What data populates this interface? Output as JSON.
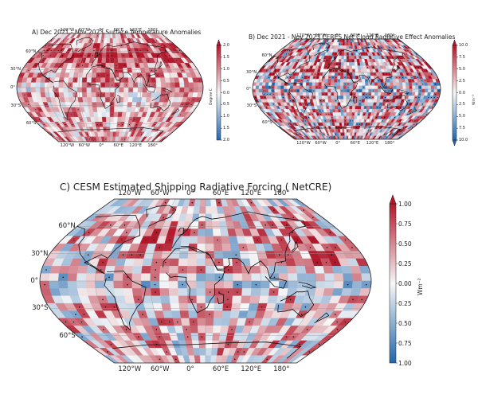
{
  "panels": [
    {
      "id": "a",
      "title": "A) Dec 2021 - Nov 2023 Surface Temperature Anomalies",
      "lon_top": [
        "60°W",
        "0°",
        "60°E",
        "120°E",
        "180°",
        "120°W"
      ],
      "lon_bottom": [
        "60°W",
        "0°",
        "60°E",
        "120°E",
        "180°",
        "120°W"
      ],
      "lat_left": [
        "60°N",
        "30°N",
        "0°",
        "30°S",
        "60°S"
      ],
      "colorbar": {
        "ticks": [
          "2.0",
          "1.5",
          "1.0",
          "0.5",
          "0.0",
          "0.5",
          "1.0",
          "1.5",
          "2.0"
        ],
        "unit": "Degree C",
        "vmin": -2.0,
        "vmax": 2.0
      }
    },
    {
      "id": "b",
      "title": "B) Dec 2021 - Nov 2023 CERES Net Cloud Radiative Effect Anomalies",
      "lon_top": [
        "60°W",
        "0°",
        "60°E",
        "120°E",
        "180°",
        "120°W"
      ],
      "lon_bottom": [
        "60°W",
        "0°",
        "60°E",
        "120°E",
        "180°",
        "120°W"
      ],
      "lat_left": [
        "60°N",
        "30°N",
        "0°",
        "30°S",
        "60°S"
      ],
      "colorbar": {
        "ticks": [
          "10.0",
          "7.5",
          "5.0",
          "2.5",
          "0.0",
          "2.5",
          "5.0",
          "7.5",
          "10.0"
        ],
        "unit": "Wm⁻²",
        "vmin": -10.0,
        "vmax": 10.0
      }
    },
    {
      "id": "c",
      "title": "C) CESM Estimated Shipping Radiative Forcing (  NetCRE)",
      "lon_top": [
        "60°W",
        "0°",
        "60°E",
        "120°E",
        "180°",
        "120°W"
      ],
      "lon_bottom": [
        "60°W",
        "0°",
        "60°E",
        "120°E",
        "180°",
        "120°W"
      ],
      "lat_left": [
        "60°N",
        "30°N",
        "0°",
        "30°S",
        "60°S"
      ],
      "colorbar": {
        "ticks": [
          "1.00",
          "0.75",
          "0.50",
          "0.25",
          "0.00",
          "0.25",
          "0.50",
          "0.75",
          "1.00"
        ],
        "unit": "Wm⁻²",
        "vmin": -1.0,
        "vmax": 1.0
      }
    }
  ],
  "colors": {
    "positive": "#b2182b",
    "neutral": "#f7f7f7",
    "negative": "#2166ac",
    "coast": "#111111",
    "grid": "#9a9a9a"
  }
}
